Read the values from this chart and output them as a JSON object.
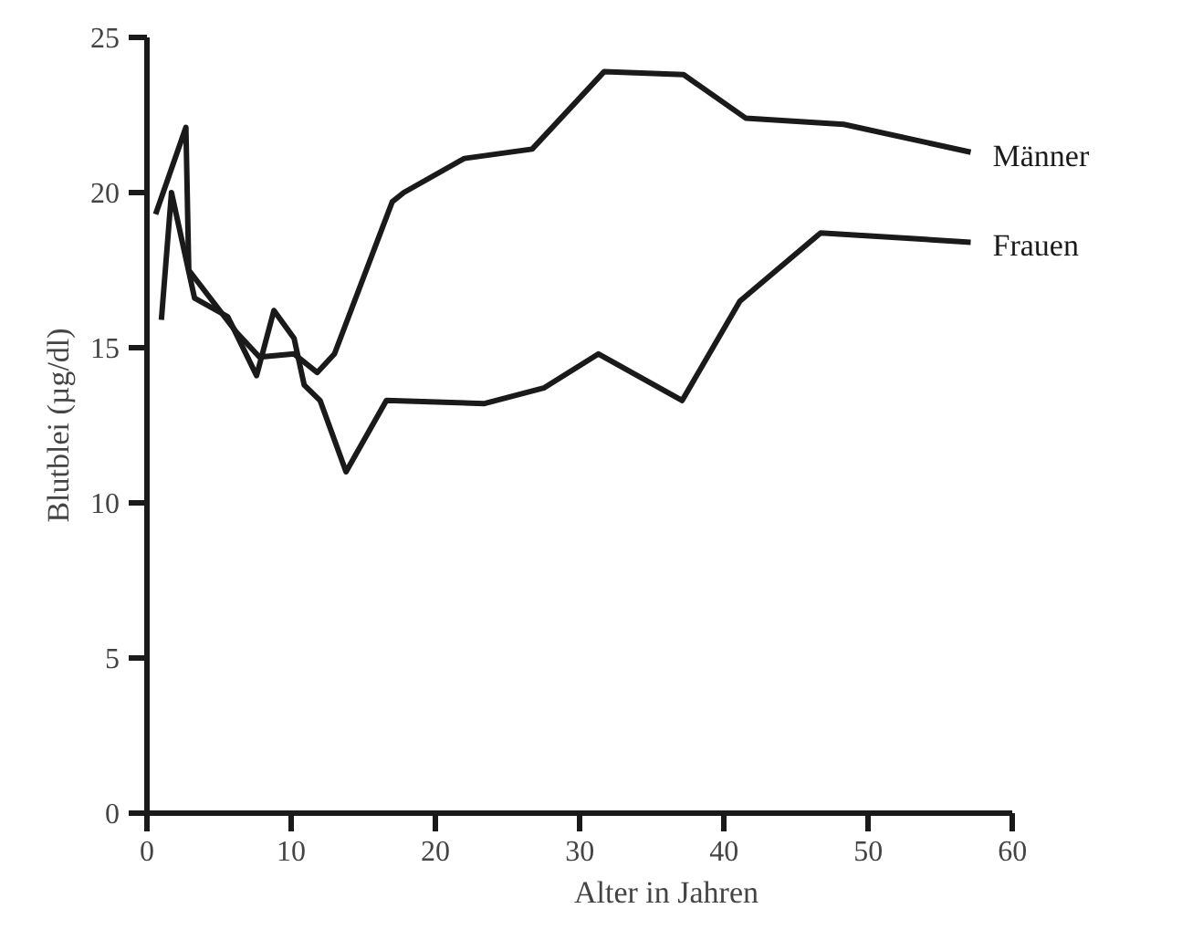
{
  "chart_data": {
    "type": "line",
    "xlabel": "Alter in Jahren",
    "ylabel": "Blutblei (µg/dl)",
    "xlim": [
      0,
      60
    ],
    "ylim": [
      0,
      25
    ],
    "xticks": [
      0,
      10,
      20,
      30,
      40,
      50,
      60
    ],
    "yticks": [
      0,
      5,
      10,
      15,
      20,
      25
    ],
    "grid": false,
    "marker": "none",
    "line_style": "solid",
    "series": [
      {
        "name": "Männer",
        "color": "#1a1a1a",
        "x": [
          0.6,
          2.7,
          2.9,
          6.2,
          7.8,
          10.2,
          11.8,
          13.0,
          17.0,
          17.8,
          22.0,
          26.7,
          31.7,
          37.2,
          41.5,
          48.3,
          57.1
        ],
        "values": [
          19.3,
          22.1,
          17.5,
          15.5,
          14.7,
          14.8,
          14.2,
          14.8,
          19.7,
          20.0,
          21.1,
          21.4,
          23.9,
          23.8,
          22.4,
          22.2,
          21.3
        ]
      },
      {
        "name": "Frauen",
        "color": "#1a1a1a",
        "x": [
          1.0,
          1.7,
          3.3,
          5.6,
          7.6,
          8.8,
          10.2,
          10.9,
          12.0,
          13.8,
          16.6,
          23.4,
          27.5,
          31.3,
          37.1,
          41.1,
          46.7,
          57.1
        ],
        "values": [
          15.9,
          20.0,
          16.6,
          16.0,
          14.1,
          16.2,
          15.3,
          13.8,
          13.3,
          11.0,
          13.3,
          13.2,
          13.7,
          14.8,
          13.3,
          16.5,
          18.7,
          18.4
        ]
      }
    ]
  }
}
